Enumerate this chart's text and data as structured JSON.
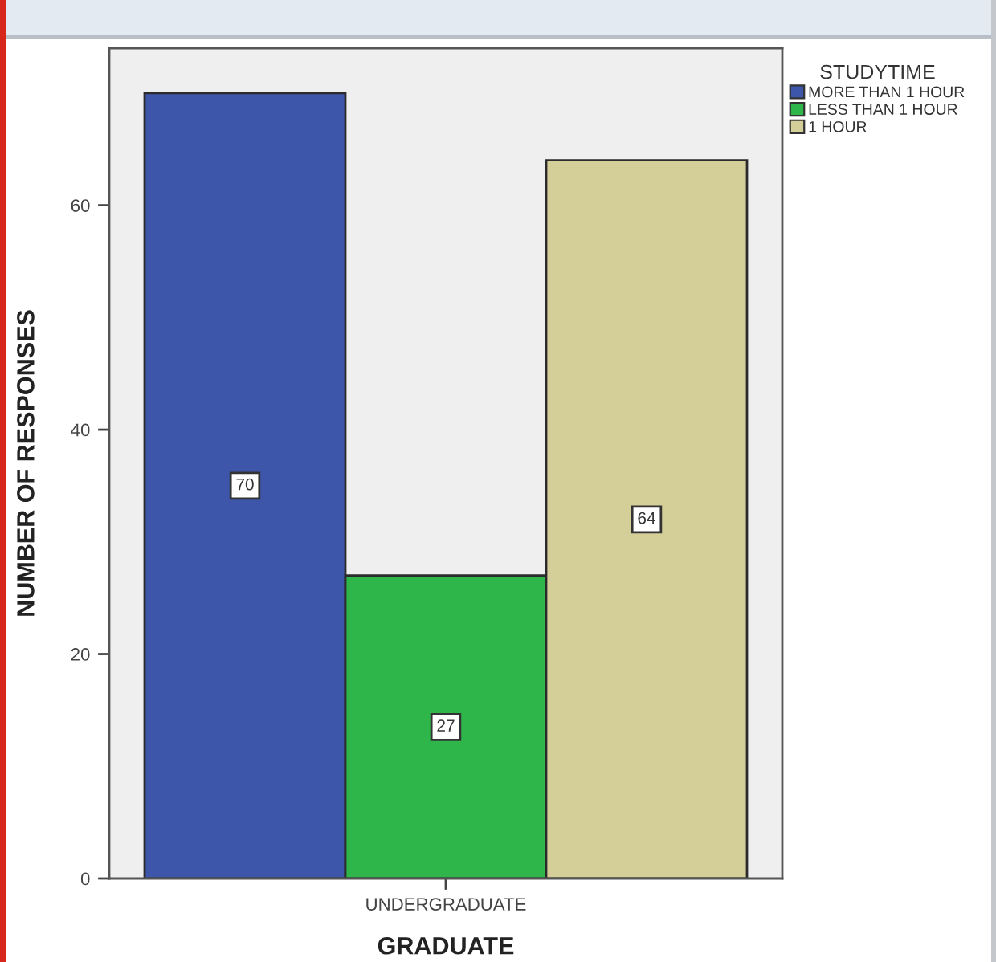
{
  "chart_data": {
    "type": "bar",
    "xlabel": "GRADUATE",
    "ylabel": "NUMBER OF RESPONSES",
    "legend_title": "STUDYTIME",
    "categories": [
      "UNDERGRADUATE"
    ],
    "series": [
      {
        "name": "MORE THAN 1 HOUR",
        "color": "#3e56aa",
        "values": [
          70
        ]
      },
      {
        "name": "LESS THAN 1 HOUR",
        "color": "#2eb64a",
        "values": [
          27
        ]
      },
      {
        "name": "1 HOUR",
        "color": "#d4cf98",
        "values": [
          64
        ]
      }
    ],
    "ylim": [
      0,
      74
    ],
    "yticks": [
      0,
      20,
      40,
      60
    ],
    "data_labels": true,
    "legend": "top right"
  }
}
